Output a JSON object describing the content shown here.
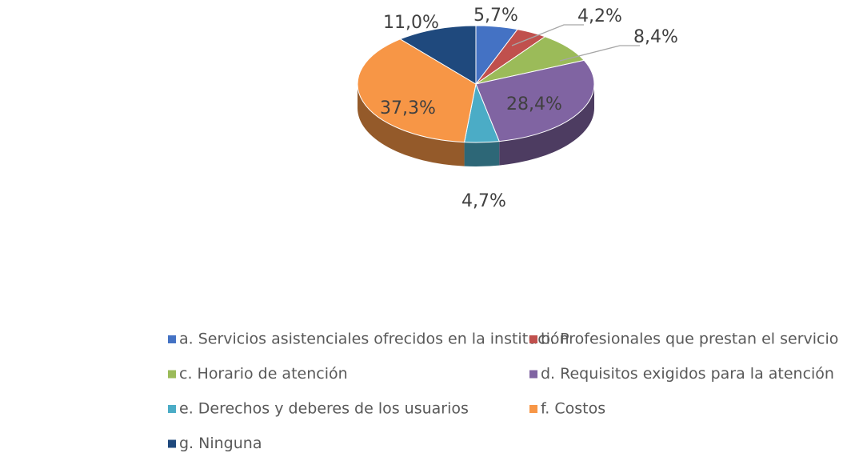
{
  "chart_data": {
    "type": "pie",
    "categories": [
      "a. Servicios asistenciales ofrecidos en la institución",
      "b. Profesionales que prestan el servicio",
      "c. Horario de atención",
      "d. Requisitos exigidos para la atención",
      "e. Derechos y deberes de los usuarios",
      "f. Costos",
      "g. Ninguna"
    ],
    "values": [
      5.7,
      4.2,
      8.4,
      28.4,
      4.7,
      37.3,
      11.0
    ],
    "value_labels": [
      "5,7%",
      "4,2%",
      "8,4%",
      "28,4%",
      "4,7%",
      "37,3%",
      "11,0%"
    ],
    "colors": [
      "#4472c4",
      "#c0504d",
      "#9bbb59",
      "#8064a2",
      "#4bacc6",
      "#f79646",
      "#1f497d"
    ],
    "legend": "bottom"
  }
}
